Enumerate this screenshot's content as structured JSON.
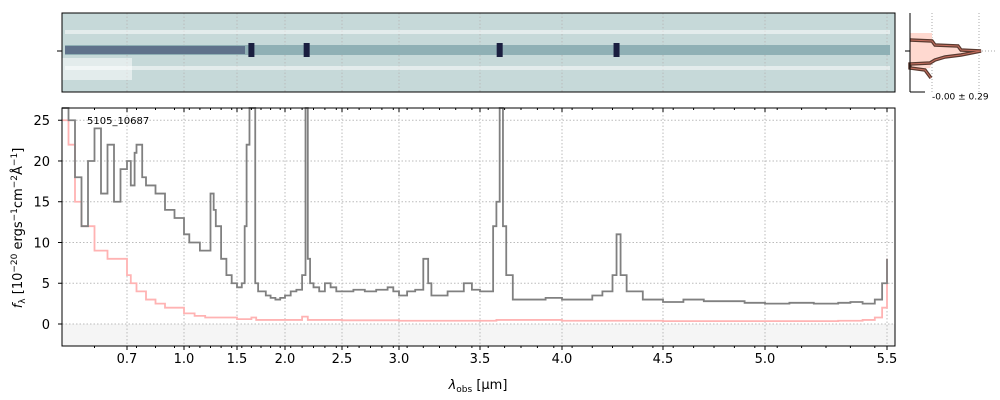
{
  "chart_data": {
    "type": "line",
    "title": "",
    "object_label": "5105_10687",
    "xlabel": "λobs [μm]",
    "xlabel_main": "λ",
    "xlabel_sub": "obs",
    "xlabel_unit": " [μm]",
    "ylabel": "fλ [10^-20 ergs^-1 cm^-2 Å^-1]",
    "ylim": [
      -2.7,
      26.5
    ],
    "xlim": [
      0.6,
      5.52
    ],
    "grid": true,
    "xticks": [
      0.7,
      1.0,
      1.5,
      2.0,
      2.5,
      3.0,
      3.5,
      4.0,
      4.5,
      5.0,
      5.5
    ],
    "xtick_labels": [
      "0.7",
      "1.0",
      "1.5",
      "2.0",
      "2.5",
      "3.0",
      "3.5",
      "4.0",
      "4.5",
      "5.0",
      "5.5"
    ],
    "yticks": [
      0,
      5,
      10,
      15,
      20,
      25
    ],
    "ytick_labels": [
      "0",
      "5",
      "10",
      "15",
      "20",
      "25"
    ],
    "series": [
      {
        "name": "flux",
        "color": "#808080",
        "x": [
          0.6,
          0.61,
          0.62,
          0.63,
          0.64,
          0.65,
          0.66,
          0.67,
          0.68,
          0.69,
          0.7,
          0.72,
          0.74,
          0.75,
          0.78,
          0.8,
          0.85,
          0.9,
          0.95,
          1.0,
          1.05,
          1.1,
          1.15,
          1.2,
          1.25,
          1.28,
          1.3,
          1.35,
          1.4,
          1.45,
          1.5,
          1.55,
          1.58,
          1.6,
          1.63,
          1.67,
          1.69,
          1.72,
          1.8,
          1.85,
          1.9,
          1.95,
          2.0,
          2.05,
          2.1,
          2.15,
          2.18,
          2.2,
          2.22,
          2.25,
          2.3,
          2.35,
          2.4,
          2.45,
          2.5,
          2.6,
          2.7,
          2.8,
          2.9,
          2.95,
          3.0,
          3.05,
          3.1,
          3.15,
          3.18,
          3.2,
          3.3,
          3.4,
          3.45,
          3.5,
          3.55,
          3.58,
          3.6,
          3.62,
          3.64,
          3.66,
          3.7,
          3.8,
          3.9,
          4.0,
          4.1,
          4.15,
          4.2,
          4.25,
          4.27,
          4.29,
          4.32,
          4.4,
          4.5,
          4.6,
          4.7,
          4.8,
          4.9,
          5.0,
          5.1,
          5.2,
          5.3,
          5.35,
          5.4,
          5.45,
          5.48,
          5.5
        ],
        "y": [
          30,
          25,
          18,
          12,
          20,
          24,
          16,
          22,
          15,
          19,
          20,
          17,
          21,
          22,
          18,
          17,
          16,
          14,
          13,
          11,
          10,
          10,
          9,
          9,
          16,
          14,
          12,
          8,
          6,
          5,
          4.5,
          5,
          12,
          22,
          30,
          30,
          5,
          4,
          3.5,
          3.2,
          3,
          3.2,
          3.5,
          4,
          4.2,
          6,
          30,
          8,
          5,
          4.5,
          4,
          5,
          4.5,
          4,
          4,
          4.2,
          4,
          4.2,
          4.5,
          4,
          3.5,
          4,
          4.2,
          8,
          5,
          3.5,
          4,
          5,
          4.2,
          4,
          4,
          12,
          15,
          30,
          12,
          6,
          3,
          3,
          3.2,
          3,
          3,
          3.5,
          4,
          6,
          11,
          6,
          4,
          3,
          2.7,
          3,
          2.8,
          2.8,
          2.6,
          2.5,
          2.6,
          2.5,
          2.6,
          2.7,
          2.5,
          3,
          5,
          8
        ]
      },
      {
        "name": "error",
        "color": "#ffb3b3",
        "x": [
          0.6,
          0.61,
          0.62,
          0.63,
          0.65,
          0.67,
          0.7,
          0.72,
          0.75,
          0.8,
          0.85,
          0.9,
          1.0,
          1.1,
          1.2,
          1.5,
          1.65,
          1.7,
          2.0,
          2.15,
          2.2,
          2.5,
          3.0,
          3.5,
          3.6,
          4.0,
          4.5,
          5.0,
          5.3,
          5.4,
          5.45,
          5.48,
          5.5
        ],
        "y": [
          25,
          22,
          15,
          12,
          9,
          8,
          6,
          5,
          4,
          3,
          2.5,
          2,
          1.3,
          1,
          0.8,
          0.6,
          0.8,
          0.5,
          0.5,
          0.9,
          0.5,
          0.45,
          0.4,
          0.4,
          0.5,
          0.4,
          0.35,
          0.35,
          0.4,
          0.5,
          0.8,
          2,
          8
        ]
      }
    ],
    "inset": {
      "label": "-0.00 ± 0.29"
    }
  }
}
